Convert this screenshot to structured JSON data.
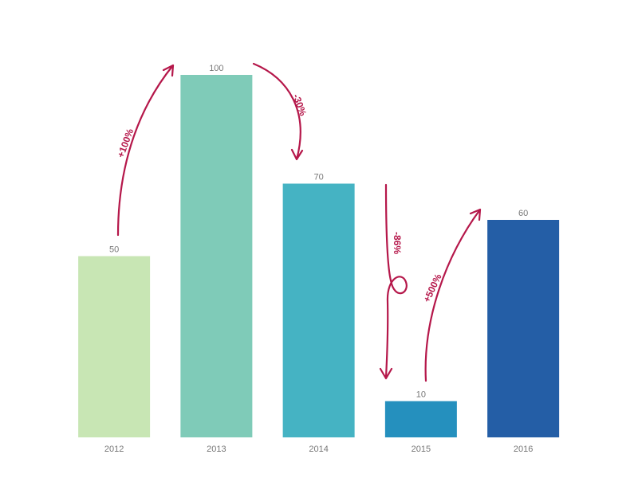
{
  "chart_data": {
    "type": "bar",
    "categories": [
      "2012",
      "2013",
      "2014",
      "2015",
      "2016"
    ],
    "values": [
      50,
      100,
      70,
      10,
      60
    ],
    "colors": [
      "#c8e6b4",
      "#7fcbb8",
      "#45b3c3",
      "#2590be",
      "#245ea6"
    ],
    "ylim": [
      0,
      100
    ],
    "annotations": [
      "+100%",
      "-30%",
      "-86%",
      "+500%"
    ]
  }
}
